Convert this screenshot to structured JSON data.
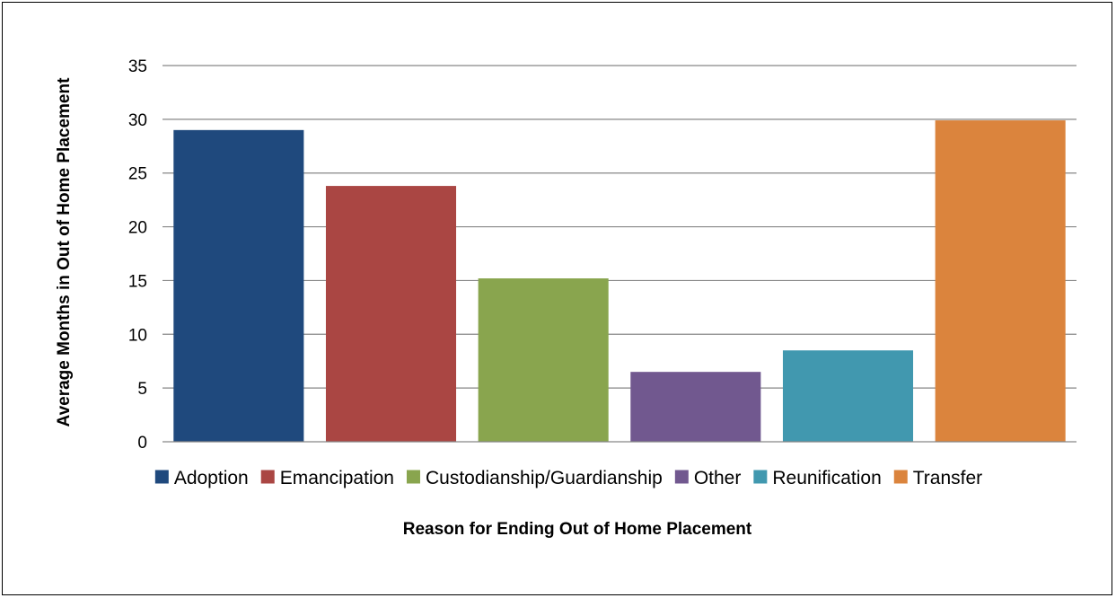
{
  "chart_data": {
    "type": "bar",
    "title": "",
    "xlabel": "Reason for Ending Out of Home Placement",
    "ylabel": "Average Months in Out of Home Placement",
    "ylim": [
      0,
      35
    ],
    "yticks": [
      0,
      5,
      10,
      15,
      20,
      25,
      30,
      35
    ],
    "grid": true,
    "legend_position": "bottom",
    "categories": [
      "Adoption",
      "Emancipation",
      "Custodianship/Guardianship",
      "Other",
      "Reunification",
      "Transfer"
    ],
    "values": [
      29.0,
      23.8,
      15.2,
      6.5,
      8.5,
      29.9
    ],
    "colors": [
      "#1F497D",
      "#AA4643",
      "#89A54E",
      "#71588F",
      "#4198AF",
      "#DB843D"
    ]
  }
}
